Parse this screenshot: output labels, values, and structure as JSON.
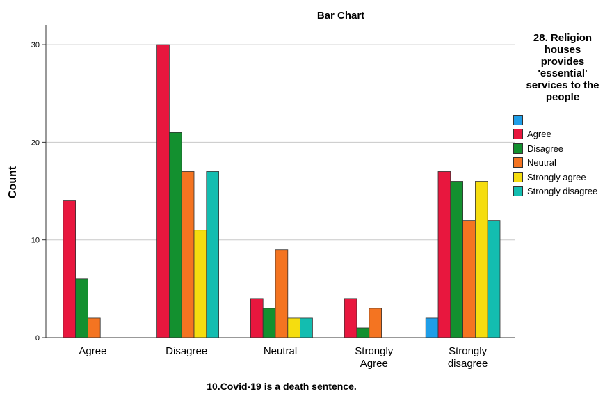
{
  "chart_data": {
    "type": "bar",
    "title": "Bar Chart",
    "xlabel": "10.Covid-19 is a death sentence.",
    "ylabel": "Count",
    "categories": [
      "Agree",
      "Disagree",
      "Neutral",
      "Strongly Agree",
      "Strongly disagree"
    ],
    "category_lines": [
      [
        "Agree"
      ],
      [
        "Disagree"
      ],
      [
        "Neutral"
      ],
      [
        "Strongly",
        "Agree"
      ],
      [
        "Strongly",
        "disagree"
      ]
    ],
    "ylim": [
      0,
      32
    ],
    "yticks": [
      0,
      10,
      20,
      30
    ],
    "grid": true,
    "legend_position": "right",
    "legend_title": "28. Religion houses provides 'essential' services to the people",
    "legend_title_lines": "28. Religion\nhouses\nprovides\n'essential'\nservices to the\npeople",
    "series": [
      {
        "name": "",
        "color": "#1f9ee8",
        "values": [
          0,
          0,
          0,
          0,
          2
        ]
      },
      {
        "name": "Agree",
        "color": "#e8173e",
        "values": [
          14,
          30,
          4,
          4,
          17
        ]
      },
      {
        "name": "Disagree",
        "color": "#13902f",
        "values": [
          6,
          21,
          3,
          1,
          16
        ]
      },
      {
        "name": "Neutral",
        "color": "#f47421",
        "values": [
          2,
          17,
          9,
          3,
          12
        ]
      },
      {
        "name": "Strongly agree",
        "color": "#f5dd0f",
        "values": [
          0,
          11,
          2,
          0,
          16
        ]
      },
      {
        "name": "Strongly disagree",
        "color": "#13bdb0",
        "values": [
          0,
          17,
          2,
          0,
          12
        ]
      }
    ]
  }
}
